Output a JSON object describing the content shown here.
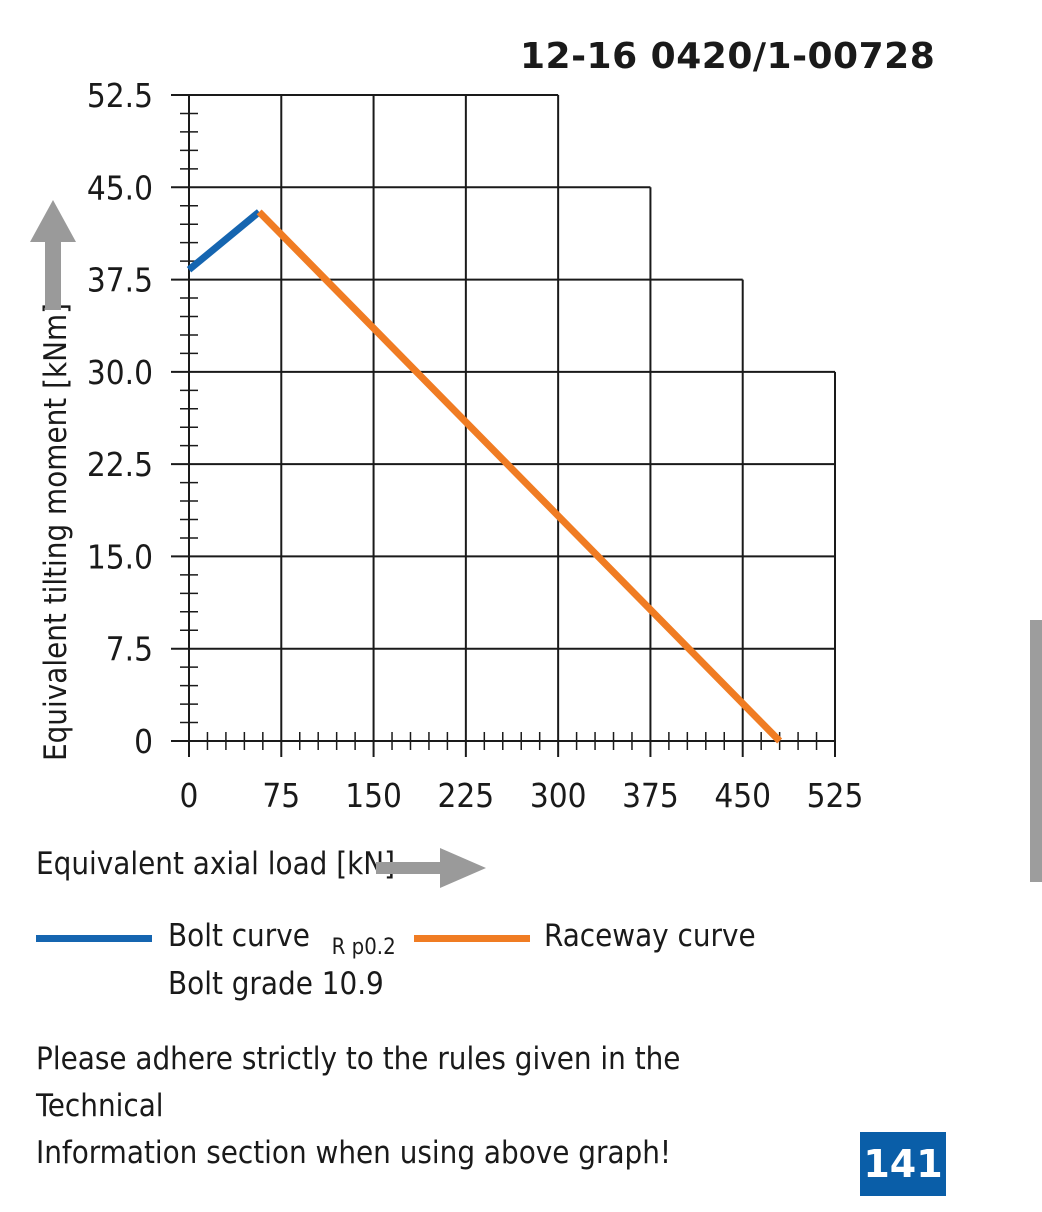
{
  "chart_code": "12-16 0420/1-00728",
  "page_number": "141",
  "note_lines": [
    "Please adhere strictly to the rules given in the Technical",
    "Information section when using above graph!"
  ],
  "colors": {
    "bolt_curve": "#1565b0",
    "raceway_curve": "#f07c23",
    "arrow": "#9a9a9a",
    "page_number_bg": "#0a5ea8",
    "side_tab": "#9d9d9d"
  },
  "chart_data": {
    "type": "line",
    "xlabel": "Equivalent axial load [kN]",
    "ylabel": "Equivalent tilting moment [kNm]",
    "xlim": [
      0,
      525
    ],
    "ylim": [
      0,
      52.5
    ],
    "x_ticks": [
      "0",
      "75",
      "150",
      "225",
      "300",
      "375",
      "450",
      "525"
    ],
    "y_ticks": [
      "0",
      "7.5",
      "15.0",
      "22.5",
      "30.0",
      "37.5",
      "45.0",
      "52.5"
    ],
    "grid_top_by_column": [
      52.5,
      52.5,
      52.5,
      52.5,
      52.5,
      45.0,
      37.5,
      30.0
    ],
    "series": [
      {
        "name": "Bolt curve",
        "name_subscript": "R p0.2",
        "name_line2": "Bolt grade 10.9",
        "color": "#1565b0",
        "x": [
          0,
          57
        ],
        "y": [
          38.3,
          43.0
        ]
      },
      {
        "name": "Raceway curve",
        "color": "#f07c23",
        "x": [
          57,
          480
        ],
        "y": [
          43.0,
          0
        ]
      }
    ],
    "legend_placement": "bottom-left"
  }
}
